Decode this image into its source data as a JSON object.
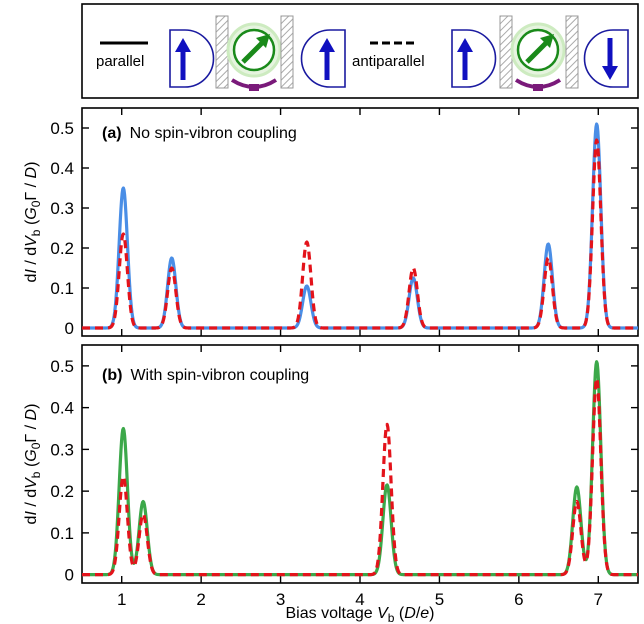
{
  "legend": {
    "parallel_label": "parallel",
    "antiparallel_label": "antiparallel"
  },
  "colors": {
    "blue": "#4a8ee6",
    "red": "#e3131b",
    "green": "#3ca84a",
    "electrode_stroke": "#1a1aa0",
    "arrow_blue": "#1010c0",
    "molecule_green": "#1a8a1a",
    "molecule_halo": "#cdebc0",
    "gate": "#7a1a7a",
    "barrier": "#999999"
  },
  "icons": [
    "electrode-up-icon",
    "barrier-icon",
    "molecule-spin-icon",
    "electrode-down-icon"
  ],
  "chart_data": [
    {
      "type": "line",
      "panel_tag": "(a)",
      "title": "No spin-vibron coupling",
      "ylabel": "dI/dVb (G0Γ/D)",
      "ylim": [
        -0.02,
        0.55
      ],
      "yticks": [
        0,
        0.1,
        0.2,
        0.3,
        0.4,
        0.5
      ],
      "xlim": [
        0.5,
        7.5
      ],
      "grid": false,
      "series": [
        {
          "color": "blue",
          "style": "solid",
          "peaks": [
            [
              1.02,
              0.35
            ],
            [
              1.63,
              0.175
            ],
            [
              3.33,
              0.105
            ],
            [
              4.67,
              0.125
            ],
            [
              6.37,
              0.21
            ],
            [
              6.98,
              0.51
            ]
          ]
        },
        {
          "color": "red",
          "style": "dashed",
          "peaks": [
            [
              1.02,
              0.235
            ],
            [
              1.63,
              0.15
            ],
            [
              3.33,
              0.215
            ],
            [
              4.67,
              0.15
            ],
            [
              6.37,
              0.175
            ],
            [
              6.98,
              0.47
            ]
          ]
        }
      ]
    },
    {
      "type": "line",
      "panel_tag": "(b)",
      "title": "With spin-vibron coupling",
      "ylabel": "dI/dVb (G0Γ/D)",
      "xlabel": "Bias voltage Vb (D/e)",
      "ylim": [
        -0.02,
        0.55
      ],
      "yticks": [
        0,
        0.1,
        0.2,
        0.3,
        0.4,
        0.5
      ],
      "xlim": [
        0.5,
        7.5
      ],
      "xticks": [
        1,
        2,
        3,
        4,
        5,
        6,
        7
      ],
      "grid": false,
      "series": [
        {
          "color": "green",
          "style": "solid",
          "peaks": [
            [
              1.02,
              0.35
            ],
            [
              1.27,
              0.175
            ],
            [
              4.34,
              0.215
            ],
            [
              6.73,
              0.21
            ],
            [
              6.98,
              0.51
            ]
          ]
        },
        {
          "color": "red",
          "style": "dashed",
          "peaks": [
            [
              1.02,
              0.235
            ],
            [
              1.27,
              0.145
            ],
            [
              4.34,
              0.36
            ],
            [
              6.73,
              0.175
            ],
            [
              6.98,
              0.47
            ]
          ]
        }
      ]
    }
  ]
}
